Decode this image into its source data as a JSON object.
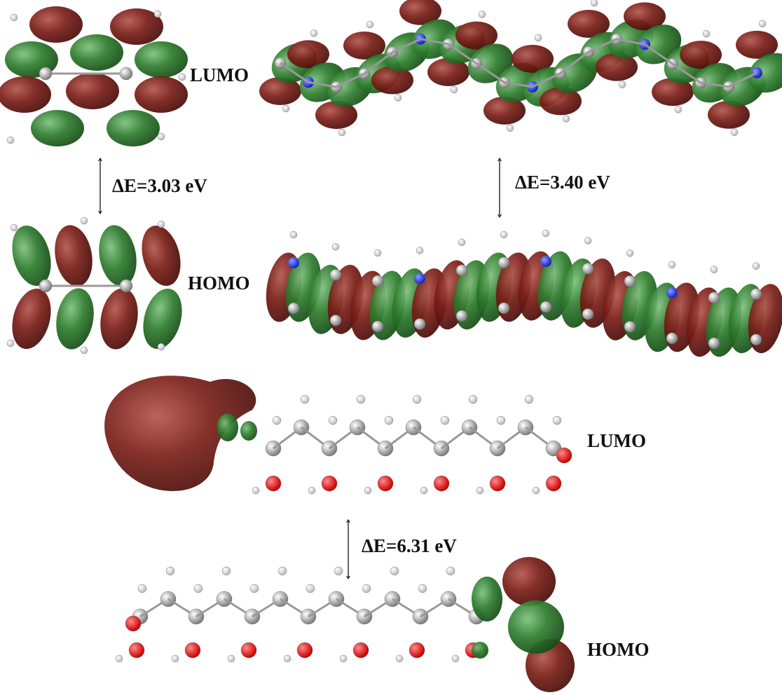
{
  "top_section": {
    "lumo_label": "LUMO",
    "homo_label": "HOMO",
    "gap_left": "ΔE=3.03 eV",
    "gap_right": "ΔE=3.40 eV"
  },
  "bottom_section": {
    "lumo_label": "LUMO",
    "gap": "ΔE=6.31 eV",
    "homo_label": "HOMO"
  }
}
